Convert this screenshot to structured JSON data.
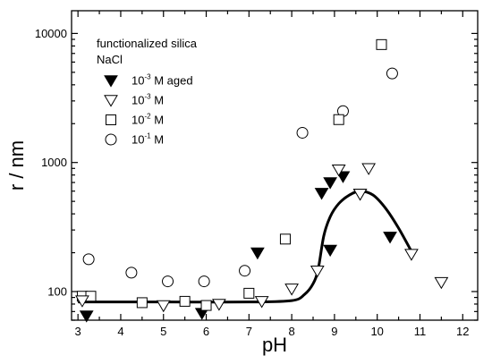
{
  "chart_data": {
    "type": "scatter",
    "yscale": "log",
    "grid": false,
    "xlim": [
      2.85,
      12.35
    ],
    "ylim": [
      60,
      15000
    ],
    "xlabel": "pH",
    "ylabel": "r / nm",
    "xticks": [
      "3",
      "4",
      "5",
      "6",
      "7",
      "8",
      "9",
      "10",
      "11",
      "12"
    ],
    "yticks": [
      "100",
      "1000",
      "10000"
    ],
    "legend": {
      "position": "top-left",
      "title_lines": [
        "functionalized silica",
        "NaCl"
      ],
      "entries": [
        {
          "base": "10",
          "exp": "-3",
          "suffix": " M aged"
        },
        {
          "base": "10",
          "exp": "-3",
          "suffix": " M"
        },
        {
          "base": "10",
          "exp": "-2",
          "suffix": " M"
        },
        {
          "base": "10",
          "exp": "-1",
          "suffix": " M"
        }
      ]
    },
    "series": [
      {
        "marker": "filled-triangle-down",
        "points": [
          [
            3.2,
            65
          ],
          [
            5.9,
            68
          ],
          [
            7.2,
            200
          ],
          [
            8.7,
            580
          ],
          [
            8.9,
            700
          ],
          [
            8.9,
            210
          ],
          [
            9.2,
            780
          ],
          [
            9.6,
            570
          ],
          [
            10.3,
            265
          ]
        ]
      },
      {
        "marker": "open-triangle-down",
        "points": [
          [
            3.1,
            85
          ],
          [
            5.0,
            78
          ],
          [
            6.3,
            80
          ],
          [
            7.3,
            84
          ],
          [
            8.0,
            105
          ],
          [
            8.6,
            145
          ],
          [
            9.1,
            880
          ],
          [
            9.6,
            570
          ],
          [
            9.8,
            900
          ],
          [
            10.8,
            195
          ],
          [
            11.5,
            118
          ]
        ]
      },
      {
        "marker": "open-square",
        "points": [
          [
            3.1,
            92
          ],
          [
            3.3,
            92
          ],
          [
            4.5,
            82
          ],
          [
            5.5,
            84
          ],
          [
            6.0,
            78
          ],
          [
            7.0,
            97
          ],
          [
            7.85,
            255
          ],
          [
            9.1,
            2150
          ],
          [
            10.1,
            8200
          ]
        ]
      },
      {
        "marker": "open-circle",
        "points": [
          [
            3.25,
            178
          ],
          [
            4.25,
            140
          ],
          [
            5.1,
            120
          ],
          [
            5.95,
            120
          ],
          [
            6.9,
            145
          ],
          [
            8.25,
            1700
          ],
          [
            9.2,
            2500
          ],
          [
            10.35,
            4900
          ]
        ]
      }
    ],
    "fit_curve": {
      "style": "solid-thick",
      "points": [
        [
          3.0,
          83
        ],
        [
          5.0,
          83
        ],
        [
          7.0,
          83
        ],
        [
          8.0,
          85
        ],
        [
          8.3,
          95
        ],
        [
          8.5,
          115
        ],
        [
          8.62,
          150
        ],
        [
          8.75,
          270
        ],
        [
          8.9,
          380
        ],
        [
          9.1,
          480
        ],
        [
          9.35,
          560
        ],
        [
          9.6,
          600
        ],
        [
          9.9,
          560
        ],
        [
          10.2,
          440
        ],
        [
          10.5,
          310
        ],
        [
          10.8,
          205
        ]
      ]
    }
  }
}
